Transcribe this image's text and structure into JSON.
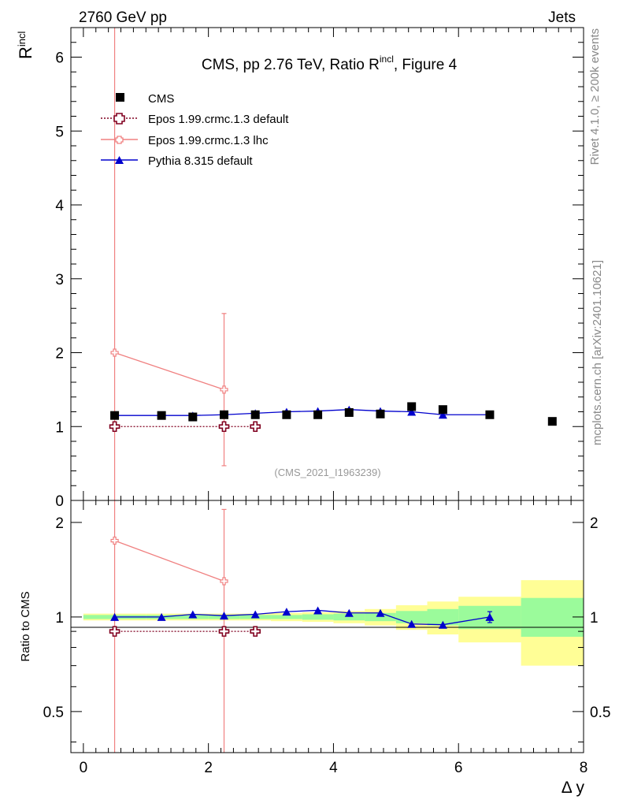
{
  "header": {
    "left": "2760 GeV pp",
    "right": "Jets"
  },
  "side": {
    "rivet": "Rivet 4.1.0, ≥ 200k events",
    "mcplots": "mcplots.cern.ch [arXiv:2401.10621]"
  },
  "chart_data": {
    "type": "line",
    "title": "CMS, pp 2.76 TeV, Ratio R",
    "title_sup": "incl",
    "title_suffix": ", Figure 4",
    "analysis": "(CMS_2021_I1963239)",
    "xlabel": "Δ y",
    "ylabel": "R",
    "ylabel_sup": "incl",
    "ratio_ylabel": "Ratio to CMS",
    "xlim": [
      -0.2,
      8.0
    ],
    "ylim": [
      0,
      6.4
    ],
    "ratio_ylim": [
      0.37,
      2.35
    ],
    "x_ticks": [
      "0",
      "2",
      "4",
      "6",
      "8"
    ],
    "y_ticks": [
      "0",
      "1",
      "2",
      "3",
      "4",
      "5",
      "6"
    ],
    "ratio_ticks": [
      "0.5",
      "1",
      "2"
    ],
    "legend": [
      "CMS",
      "Epos 1.99.crmc.1.3 default",
      "Epos 1.99.crmc.1.3 lhc",
      "Pythia 8.315 default"
    ],
    "colors": {
      "cms": "#000000",
      "epos_default": "#800020",
      "epos_lhc": "#f08080",
      "pythia": "#0000cd",
      "band_green": "#9bfb9b",
      "band_yellow": "#fffe96"
    },
    "series": [
      {
        "name": "CMS",
        "x": [
          0.5,
          1.25,
          1.75,
          2.25,
          2.75,
          3.25,
          3.75,
          4.25,
          4.75,
          5.25,
          5.75,
          6.5,
          7.5
        ],
        "values": [
          1.15,
          1.15,
          1.13,
          1.16,
          1.16,
          1.16,
          1.16,
          1.19,
          1.17,
          1.27,
          1.23,
          1.16,
          1.07
        ]
      },
      {
        "name": "Epos 1.99.crmc.1.3 default",
        "x": [
          0.5,
          2.25,
          2.75
        ],
        "values": [
          1.0,
          1.0,
          1.0
        ]
      },
      {
        "name": "Epos 1.99.crmc.1.3 lhc",
        "x": [
          0.5,
          2.25
        ],
        "values": [
          2.0,
          1.5
        ],
        "err_low": [
          2.0,
          1.03
        ],
        "err_high": [
          4.4,
          1.03
        ]
      },
      {
        "name": "Pythia 8.315 default",
        "x": [
          0.5,
          1.25,
          1.75,
          2.25,
          2.75,
          3.25,
          3.75,
          4.25,
          4.75,
          5.25,
          5.75,
          6.5
        ],
        "values": [
          1.15,
          1.15,
          1.15,
          1.16,
          1.18,
          1.2,
          1.21,
          1.23,
          1.21,
          1.2,
          1.16,
          1.16
        ]
      }
    ],
    "ratio_series": [
      {
        "name": "Epos 1.99.crmc.1.3 default",
        "x": [
          0.5,
          2.25,
          2.75
        ],
        "values": [
          0.9,
          0.9,
          0.9
        ]
      },
      {
        "name": "Epos 1.99.crmc.1.3 lhc",
        "x": [
          0.5,
          2.25
        ],
        "values": [
          1.75,
          1.3
        ],
        "err_low": [
          1.75,
          1.3
        ],
        "err_high": [
          1.6,
          0.9
        ]
      },
      {
        "name": "Pythia 8.315 default",
        "x": [
          0.5,
          1.25,
          1.75,
          2.25,
          2.75,
          3.25,
          3.75,
          4.25,
          4.75,
          5.25,
          5.75,
          6.5
        ],
        "values": [
          1.0,
          1.0,
          1.02,
          1.01,
          1.02,
          1.04,
          1.05,
          1.03,
          1.03,
          0.95,
          0.945,
          1.0
        ],
        "err_low": [
          0,
          0,
          0,
          0,
          0,
          0,
          0,
          0,
          0,
          0,
          0,
          0.04
        ],
        "err_high": [
          0,
          0,
          0,
          0,
          0,
          0,
          0,
          0,
          0,
          0,
          0,
          0.04
        ]
      }
    ],
    "bands": [
      {
        "x0": 0.0,
        "x1": 1.0,
        "g_lo": 0.985,
        "g_hi": 1.015,
        "y_lo": 0.975,
        "y_hi": 1.025
      },
      {
        "x0": 1.0,
        "x1": 1.5,
        "g_lo": 0.985,
        "g_hi": 1.015,
        "y_lo": 0.975,
        "y_hi": 1.025
      },
      {
        "x0": 1.5,
        "x1": 2.0,
        "g_lo": 0.985,
        "g_hi": 1.015,
        "y_lo": 0.975,
        "y_hi": 1.025
      },
      {
        "x0": 2.0,
        "x1": 2.5,
        "g_lo": 0.985,
        "g_hi": 1.015,
        "y_lo": 0.975,
        "y_hi": 1.025
      },
      {
        "x0": 2.5,
        "x1": 3.0,
        "g_lo": 0.985,
        "g_hi": 1.015,
        "y_lo": 0.975,
        "y_hi": 1.025
      },
      {
        "x0": 3.0,
        "x1": 3.5,
        "g_lo": 0.985,
        "g_hi": 1.015,
        "y_lo": 0.97,
        "y_hi": 1.03
      },
      {
        "x0": 3.5,
        "x1": 4.0,
        "g_lo": 0.98,
        "g_hi": 1.02,
        "y_lo": 0.965,
        "y_hi": 1.035
      },
      {
        "x0": 4.0,
        "x1": 4.5,
        "g_lo": 0.975,
        "g_hi": 1.025,
        "y_lo": 0.955,
        "y_hi": 1.045
      },
      {
        "x0": 4.5,
        "x1": 5.0,
        "g_lo": 0.97,
        "g_hi": 1.03,
        "y_lo": 0.94,
        "y_hi": 1.06
      },
      {
        "x0": 5.0,
        "x1": 5.5,
        "g_lo": 0.955,
        "g_hi": 1.045,
        "y_lo": 0.91,
        "y_hi": 1.09
      },
      {
        "x0": 5.5,
        "x1": 6.0,
        "g_lo": 0.94,
        "g_hi": 1.06,
        "y_lo": 0.88,
        "y_hi": 1.12
      },
      {
        "x0": 6.0,
        "x1": 7.0,
        "g_lo": 0.915,
        "g_hi": 1.085,
        "y_lo": 0.83,
        "y_hi": 1.16
      },
      {
        "x0": 7.0,
        "x1": 8.0,
        "g_lo": 0.865,
        "g_hi": 1.15,
        "y_lo": 0.7,
        "y_hi": 1.31
      }
    ]
  }
}
